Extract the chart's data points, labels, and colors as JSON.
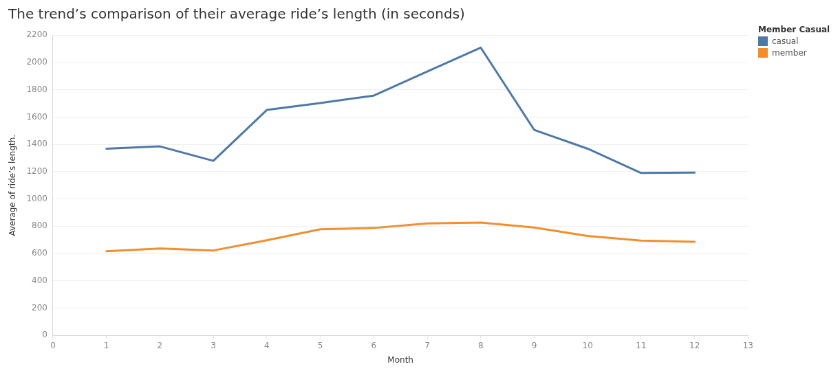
{
  "chart_data": {
    "type": "line",
    "title": "The trend’s comparison of their average ride’s length (in seconds)",
    "xlabel": "Month",
    "ylabel": "Average of ride’s length.",
    "legend_title": "Member Casual",
    "legend": "top right",
    "grid": "y",
    "x": [
      1,
      2,
      3,
      4,
      5,
      6,
      7,
      8,
      9,
      10,
      11,
      12
    ],
    "xlim": [
      0,
      13
    ],
    "xticks": [
      0,
      1,
      2,
      3,
      4,
      5,
      6,
      7,
      8,
      9,
      10,
      11,
      12,
      13
    ],
    "ylim": [
      0,
      2200
    ],
    "yticks": [
      0,
      200,
      400,
      600,
      800,
      1000,
      1200,
      1400,
      1600,
      1800,
      2000,
      2200
    ],
    "series": [
      {
        "name": "casual",
        "color": "#4e79a7",
        "values": [
          1368,
          1385,
          1279,
          1652,
          1703,
          1757,
          1933,
          2109,
          1506,
          1368,
          1190,
          1193
        ]
      },
      {
        "name": "member",
        "color": "#f28e2b",
        "values": [
          617,
          637,
          622,
          697,
          778,
          787,
          820,
          827,
          790,
          728,
          694,
          686
        ]
      }
    ]
  }
}
